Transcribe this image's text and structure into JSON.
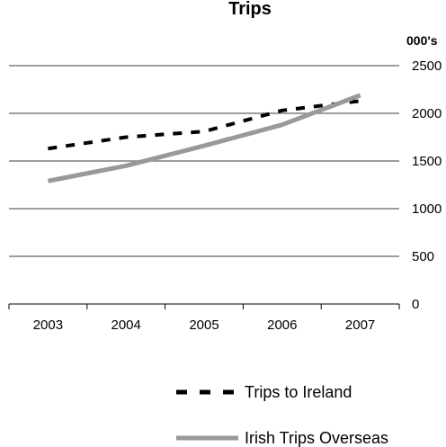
{
  "chart_data": {
    "type": "line",
    "title": "Trips",
    "unit_label": "000's",
    "categories": [
      "2003",
      "2004",
      "2005",
      "2006",
      "2007"
    ],
    "ylim": [
      0,
      2500
    ],
    "yticks": [
      0,
      500,
      1000,
      1500,
      2000,
      2500
    ],
    "grid": true,
    "legend_position": "bottom",
    "series": [
      {
        "name": "Trips to Ireland",
        "values": [
          1630,
          1750,
          1810,
          2030,
          2130
        ],
        "color": "#000000",
        "style": "dashed"
      },
      {
        "name": "Irish Trips Overseas",
        "values": [
          1290,
          1450,
          1660,
          1880,
          2190
        ],
        "color": "#999999",
        "style": "solid"
      }
    ]
  }
}
